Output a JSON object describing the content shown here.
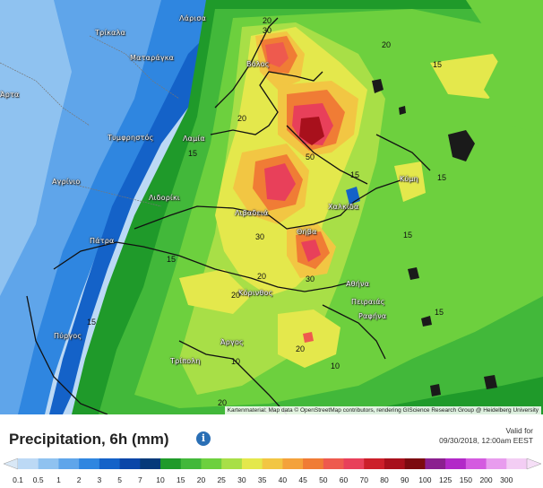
{
  "title": "Precipitation, 6h (mm)",
  "info_icon": "info-icon",
  "valid_label": "Valid for",
  "valid_date": "09/30/2018, 12:00am EEST",
  "attribution": "Kartenmaterial: Map data © OpenStreetMap contributors, rendering GIScience Research Group @ Heidelberg University",
  "scale": {
    "labels": [
      "0.1",
      "0.5",
      "1",
      "2",
      "3",
      "5",
      "7",
      "10",
      "15",
      "20",
      "25",
      "30",
      "35",
      "40",
      "45",
      "50",
      "60",
      "70",
      "80",
      "90",
      "100",
      "125",
      "150",
      "200",
      "300"
    ],
    "colors": [
      "#bcd9f5",
      "#8fc2f0",
      "#5fa5ea",
      "#2f86e0",
      "#1462c8",
      "#0a46a8",
      "#053a7a",
      "#1f9a2a",
      "#42b83a",
      "#6dd03e",
      "#a8df47",
      "#e4e84c",
      "#f2c643",
      "#f4a23b",
      "#f07c35",
      "#ee5a4e",
      "#e8405a",
      "#cc1f2a",
      "#a8101c",
      "#7c0a10",
      "#8b1f8f",
      "#b228c8",
      "#d45ae0",
      "#e89cee",
      "#f3cdf4"
    ],
    "left_arrow_color": "#d9e8f6",
    "right_arrow_color": "#f6dff7"
  },
  "cities": [
    {
      "name": "Λάρισα"
    },
    {
      "name": "Τρίκαλα"
    },
    {
      "name": "Ματαράγκα"
    },
    {
      "name": "Άρτα"
    },
    {
      "name": "Βόλος"
    },
    {
      "name": "Τυμφρηστός"
    },
    {
      "name": "Λαμία"
    },
    {
      "name": "Αγρίνιο"
    },
    {
      "name": "Λιβαδειά"
    },
    {
      "name": "Λιδορίκι"
    },
    {
      "name": "Χαλκίδα"
    },
    {
      "name": "Κύμη"
    },
    {
      "name": "Θήβα"
    },
    {
      "name": "Πάτρα"
    },
    {
      "name": "Αθήνα"
    },
    {
      "name": "Κόρινθος"
    },
    {
      "name": "Πειραιάς"
    },
    {
      "name": "Ραφήνα"
    },
    {
      "name": "Πύργος"
    },
    {
      "name": "Άργος"
    },
    {
      "name": "Τρίπολη"
    }
  ],
  "contour_labels": [
    "20",
    "30",
    "20",
    "15",
    "20",
    "15",
    "50",
    "15",
    "30",
    "15",
    "15",
    "15",
    "15",
    "30",
    "20",
    "20",
    "10",
    "20",
    "15",
    "20",
    "10",
    "20"
  ]
}
